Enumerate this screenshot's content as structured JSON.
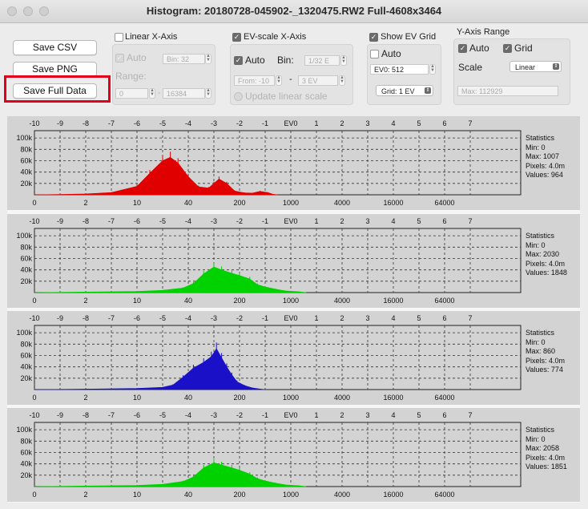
{
  "window": {
    "title": "Histogram: 20180728-045902-_1320475.RW2 Full-4608x3464"
  },
  "buttons": {
    "save_csv": "Save CSV",
    "save_png": "Save PNG",
    "save_full": "Save Full Data"
  },
  "linear": {
    "title": "Linear X-Axis",
    "auto": "Auto",
    "bin_label": "Bin: 32",
    "range_label": "Range:",
    "range_from": "0",
    "range_to": "16384"
  },
  "ev": {
    "title": "EV-scale X-Axis",
    "auto": "Auto",
    "bin_label": "Bin:",
    "bin_value": "1/32 E",
    "from": "From: -10",
    "dash": "-",
    "to": "3 EV",
    "update": "Update linear scale"
  },
  "grid": {
    "title": "Show EV Grid",
    "auto": "Auto",
    "ev0": "EV0: 512",
    "grid_value": "Grid: 1 EV"
  },
  "yaxis": {
    "title": "Y-Axis Range",
    "auto": "Auto",
    "grid": "Grid",
    "scale_label": "Scale",
    "scale_value": "Linear",
    "max": "Max: 112929"
  },
  "ev_ticks": [
    "-10",
    "-9",
    "-8",
    "-7",
    "-6",
    "-5",
    "-4",
    "-3",
    "-2",
    "-1",
    "EV0",
    "1",
    "2",
    "3",
    "4",
    "5",
    "6",
    "7"
  ],
  "bottom_ticks": [
    "0",
    "2",
    "10",
    "40",
    "200",
    "1000",
    "4000",
    "16000",
    "64000"
  ],
  "y_ticks": [
    "100k",
    "80k",
    "60k",
    "40k",
    "20k"
  ],
  "colors": {
    "red": "#e10000",
    "green": "#00d200",
    "blue": "#1a10c8",
    "bg": "#d3d3d3",
    "highlight": "#e3001b"
  },
  "chart_data": [
    {
      "type": "area",
      "name": "Red channel",
      "stats": {
        "title": "Statistics",
        "min": "Min: 0",
        "max": "Max: 1007",
        "pixels": "Pixels: 4.0m",
        "values": "Values: 964"
      },
      "x": [
        -10,
        -9,
        -8,
        -7,
        -6,
        -5.5,
        -5,
        -4.7,
        -4.4,
        -4,
        -3.6,
        -3.2,
        -3,
        -2.8,
        -2.5,
        -2.2,
        -2,
        -1.8,
        -1.5,
        -1.2,
        -0.9,
        -0.7,
        -0.5
      ],
      "y": [
        0,
        500,
        1500,
        4000,
        15000,
        38000,
        60000,
        66000,
        56000,
        32000,
        14000,
        12000,
        20000,
        28000,
        20000,
        7000,
        5000,
        3500,
        3000,
        6000,
        4000,
        1000,
        0
      ]
    },
    {
      "type": "area",
      "name": "Green channel",
      "stats": {
        "title": "Statistics",
        "min": "Min: 0",
        "max": "Max: 2030",
        "pixels": "Pixels: 4.0m",
        "values": "Values: 1848"
      },
      "x": [
        -10,
        -8,
        -6,
        -5,
        -4.2,
        -3.8,
        -3.4,
        -3,
        -2.7,
        -2.3,
        -2,
        -1.6,
        -1.3,
        -1,
        -0.6,
        -0.2,
        0.3,
        0.6
      ],
      "y": [
        0,
        1000,
        2000,
        4000,
        8000,
        16000,
        33000,
        45000,
        40000,
        34000,
        30000,
        24000,
        14000,
        10000,
        6000,
        3000,
        1500,
        0
      ]
    },
    {
      "type": "area",
      "name": "Blue channel",
      "stats": {
        "title": "Statistics",
        "min": "Min: 0",
        "max": "Max: 860",
        "pixels": "Pixels: 4.0m",
        "values": "Values: 774"
      },
      "x": [
        -10,
        -8,
        -6,
        -5,
        -4.6,
        -4.2,
        -3.8,
        -3.4,
        -3.1,
        -2.9,
        -2.7,
        -2.5,
        -2.3,
        -2.1,
        -1.8,
        -1.5,
        -1.2,
        -1.0
      ],
      "y": [
        0,
        800,
        2000,
        4000,
        8000,
        22000,
        38000,
        48000,
        58000,
        72000,
        56000,
        40000,
        26000,
        14000,
        7000,
        3000,
        1000,
        0
      ]
    },
    {
      "type": "area",
      "name": "Green channel 2",
      "stats": {
        "title": "Statistics",
        "min": "Min: 0",
        "max": "Max: 2058",
        "pixels": "Pixels: 4.0m",
        "values": "Values: 1851"
      },
      "x": [
        -10,
        -8,
        -6,
        -5,
        -4.2,
        -3.8,
        -3.4,
        -3,
        -2.7,
        -2.3,
        -2,
        -1.6,
        -1.3,
        -1,
        -0.6,
        -0.2,
        0.3,
        0.6
      ],
      "y": [
        0,
        1000,
        2000,
        4000,
        9000,
        17000,
        33000,
        42000,
        38000,
        33000,
        29000,
        22000,
        14000,
        10000,
        6000,
        3000,
        1500,
        0
      ]
    }
  ]
}
